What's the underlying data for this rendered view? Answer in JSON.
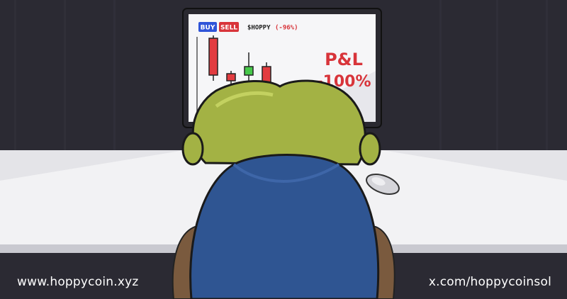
{
  "monitor": {
    "buy_label": "BUY",
    "sell_label": "SELL",
    "ticker": "$HOPPY",
    "ticker_change": "(-96%)",
    "pnl_title": "P&L",
    "pnl_value": "-100%"
  },
  "footer": {
    "website": "www.hoppycoin.xyz",
    "social": "x.com/hoppycoinsol"
  },
  "colors": {
    "background": "#2b2a33",
    "buy": "#2f54d8",
    "sell": "#d8343a",
    "candle_red": "#e23c40",
    "candle_green": "#47c84a",
    "character_head": "#a3b244",
    "character_shirt": "#2f5592"
  }
}
